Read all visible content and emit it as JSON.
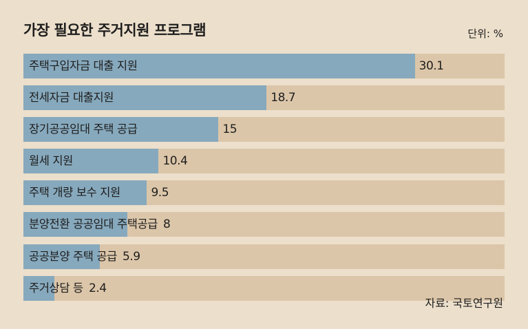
{
  "header": {
    "title": "가장 필요한 주거지원 프로그램",
    "unit": "단위: %"
  },
  "footer": {
    "source": "자료: 국토연구원"
  },
  "colors": {
    "background": "#ecdfcb",
    "track": "#dcc6a9",
    "bar": "#87a9bd"
  },
  "chart_data": {
    "type": "bar",
    "orientation": "horizontal",
    "title": "가장 필요한 주거지원 프로그램",
    "unit": "단위: %",
    "xlim": [
      0,
      37
    ],
    "categories": [
      "주택구입자금 대출 지원",
      "전세자금 대출지원",
      "장기공공임대 주택 공급",
      "월세 지원",
      "주택 개량 보수 지원",
      "분양전환 공공임대 주택공급",
      "공공분양 주택 공급",
      "주거상담 등"
    ],
    "values": [
      30.1,
      18.7,
      15,
      10.4,
      9.5,
      8,
      5.9,
      2.4
    ],
    "value_labels": [
      "30.1",
      "18.7",
      "15",
      "10.4",
      "9.5",
      "8",
      "5.9",
      "2.4"
    ]
  }
}
